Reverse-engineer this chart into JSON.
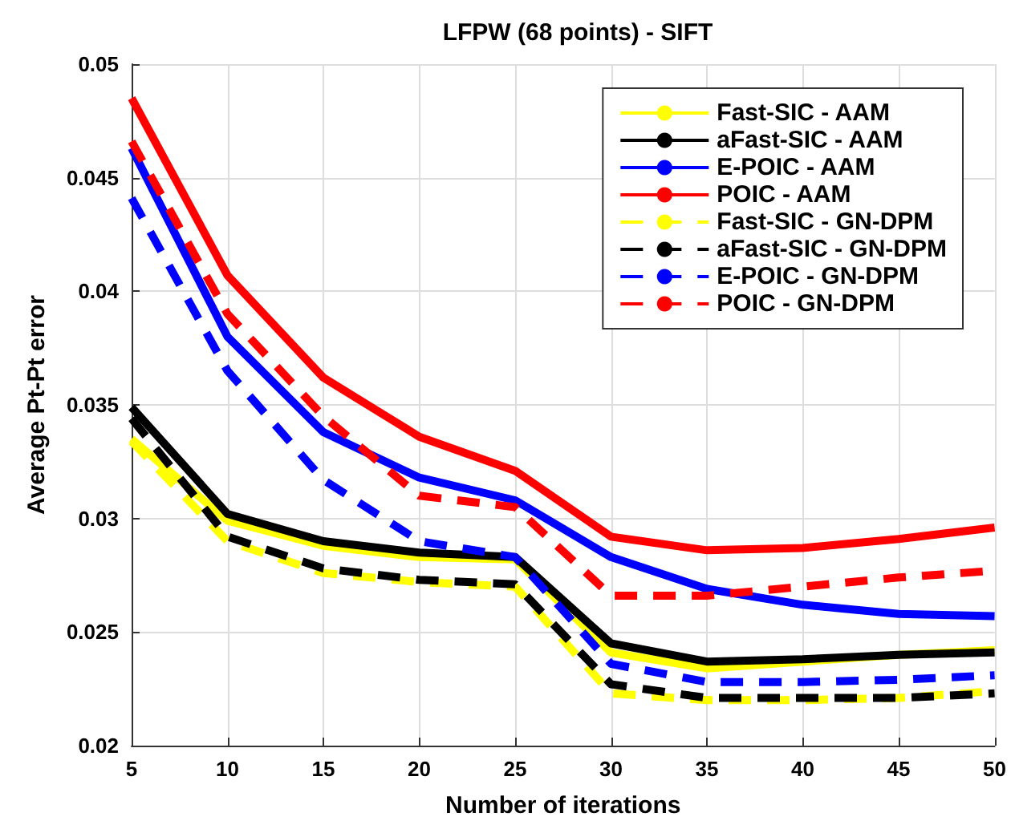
{
  "chart_data": {
    "type": "line",
    "title": "LFPW (68 points) - SIFT",
    "xlabel": "Number of iterations",
    "ylabel": "Average Pt-Pt error",
    "x": [
      5,
      10,
      15,
      20,
      25,
      30,
      35,
      40,
      45,
      50
    ],
    "xlim": [
      5,
      50
    ],
    "xticks": [
      5,
      10,
      15,
      20,
      25,
      30,
      35,
      40,
      45,
      50
    ],
    "ylim": [
      0.02,
      0.05
    ],
    "yticks": [
      0.02,
      0.025,
      0.03,
      0.035,
      0.04,
      0.045,
      0.05
    ],
    "grid": true,
    "legend": "top right",
    "marker": "none",
    "series": [
      {
        "name": "Fast-SIC - AAM",
        "color": "#ffff00",
        "line_style": "solid",
        "values": [
          0.0335,
          0.0299,
          0.0288,
          0.0283,
          0.0282,
          0.0241,
          0.0234,
          0.0237,
          0.024,
          0.0242
        ]
      },
      {
        "name": "aFast-SIC - AAM",
        "color": "#000000",
        "line_style": "solid",
        "values": [
          0.0349,
          0.0302,
          0.029,
          0.0285,
          0.0283,
          0.0245,
          0.0237,
          0.0238,
          0.024,
          0.0241
        ]
      },
      {
        "name": "E-POIC - AAM",
        "color": "#0000ff",
        "line_style": "solid",
        "values": [
          0.0463,
          0.038,
          0.0338,
          0.0318,
          0.0308,
          0.0283,
          0.0269,
          0.0262,
          0.0258,
          0.0257
        ]
      },
      {
        "name": "POIC - AAM",
        "color": "#ff0000",
        "line_style": "solid",
        "values": [
          0.0485,
          0.0407,
          0.0362,
          0.0336,
          0.0321,
          0.0292,
          0.0286,
          0.0287,
          0.0291,
          0.0296
        ]
      },
      {
        "name": "Fast-SIC - GN-DPM",
        "color": "#ffff00",
        "line_style": "dashed",
        "values": [
          0.0334,
          0.029,
          0.0276,
          0.0272,
          0.027,
          0.0223,
          0.022,
          0.022,
          0.0221,
          0.0224
        ]
      },
      {
        "name": "aFast-SIC - GN-DPM",
        "color": "#000000",
        "line_style": "dashed",
        "values": [
          0.0344,
          0.0292,
          0.0278,
          0.0273,
          0.0271,
          0.0227,
          0.0221,
          0.0221,
          0.0221,
          0.0223
        ]
      },
      {
        "name": "E-POIC - GN-DPM",
        "color": "#0000ff",
        "line_style": "dashed",
        "values": [
          0.0441,
          0.0365,
          0.0317,
          0.029,
          0.0283,
          0.0236,
          0.0228,
          0.0228,
          0.0229,
          0.0231
        ]
      },
      {
        "name": "POIC - GN-DPM",
        "color": "#ff0000",
        "line_style": "dashed",
        "values": [
          0.0466,
          0.039,
          0.0345,
          0.031,
          0.0305,
          0.0266,
          0.0266,
          0.027,
          0.0274,
          0.0277
        ]
      }
    ]
  }
}
